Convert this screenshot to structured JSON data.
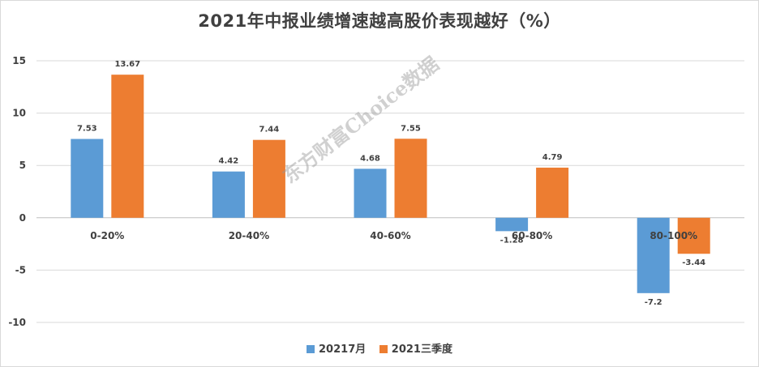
{
  "chart_data": {
    "type": "bar",
    "title": "2021年中报业绩增速越高股价表现越好（%）",
    "categories": [
      "0-20%",
      "20-40%",
      "40-60%",
      "60-80%",
      "80-100%"
    ],
    "series": [
      {
        "name": "20217月",
        "values": [
          7.53,
          4.42,
          4.68,
          -1.28,
          -7.2
        ],
        "color": "#5b9bd5"
      },
      {
        "name": "2021三季度",
        "values": [
          13.67,
          7.44,
          7.55,
          4.79,
          -3.44
        ],
        "color": "#ed7d31"
      }
    ],
    "value_labels": [
      [
        "7.53",
        "4.42",
        "4.68",
        "-1.28",
        "-7.2"
      ],
      [
        "13.67",
        "7.44",
        "7.55",
        "4.79",
        "-3.44"
      ]
    ],
    "ylim": [
      -10,
      15
    ],
    "yticks": [
      15,
      10,
      5,
      0,
      -5,
      -10
    ],
    "grid": true,
    "legend_position": "bottom",
    "xlabel": "",
    "ylabel": ""
  },
  "watermark": "东方财富Choice数据"
}
